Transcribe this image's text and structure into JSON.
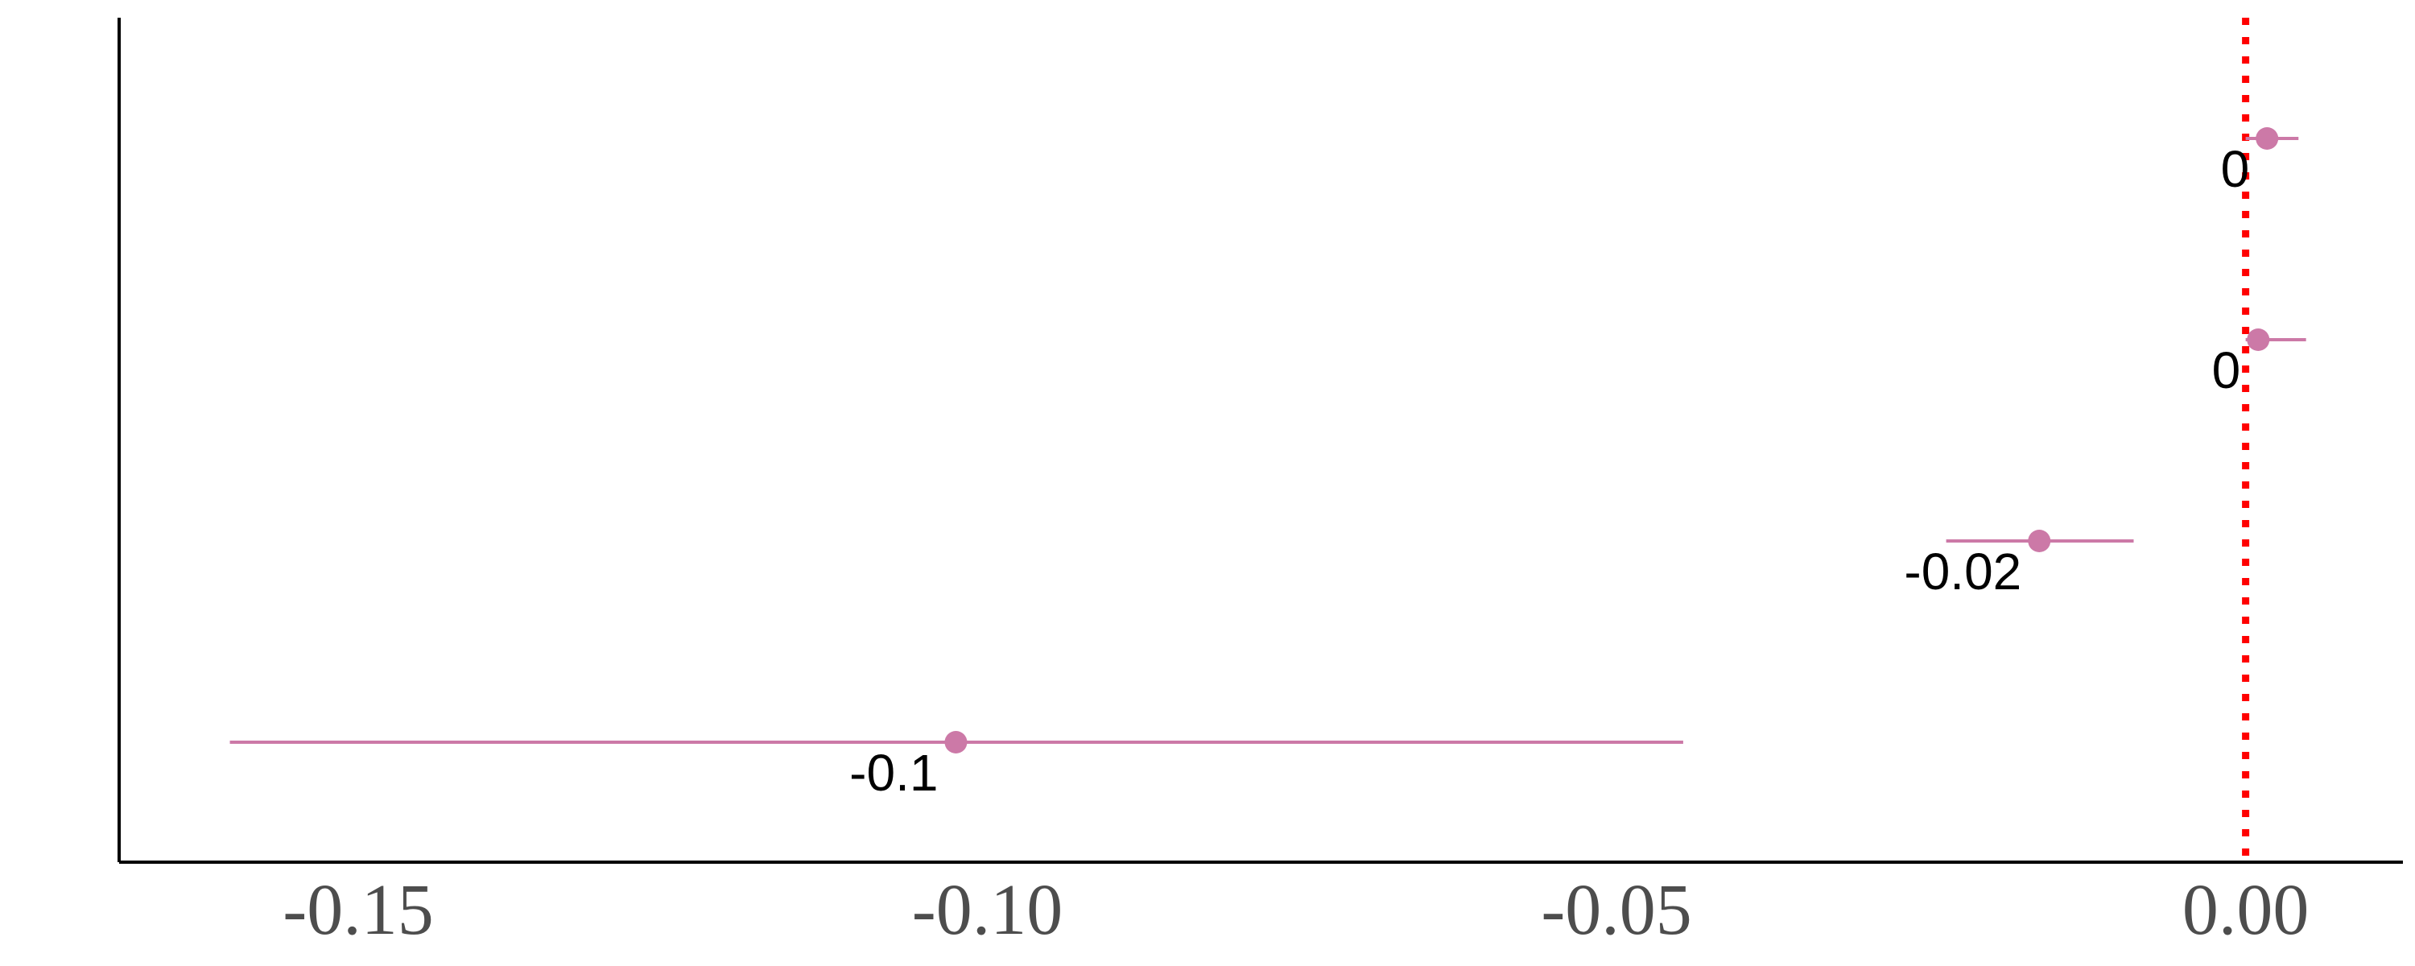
{
  "chart_data": {
    "type": "scatter",
    "subtype": "point-range",
    "xlim": [
      -0.169,
      0.0125
    ],
    "x_ticks": [
      -0.15,
      -0.1,
      -0.05,
      0.0
    ],
    "x_tick_labels": [
      "-0.15",
      "-0.10",
      "-0.05",
      "0.00"
    ],
    "reference_line": {
      "x": 0,
      "style": "dotted",
      "color": "#ff0000"
    },
    "series": [
      {
        "color": "#cc79a7",
        "points": [
          {
            "estimate": 0.0017,
            "lower": 0.0,
            "upper": 0.0042,
            "label": "0"
          },
          {
            "estimate": 0.001,
            "lower": 0.0,
            "upper": 0.0048,
            "label": "0"
          },
          {
            "estimate": -0.0164,
            "lower": -0.0238,
            "upper": -0.0089,
            "label": "-0.02"
          },
          {
            "estimate": -0.1025,
            "lower": -0.1602,
            "upper": -0.0447,
            "label": "-0.1"
          }
        ]
      }
    ],
    "grid": false,
    "legend": "none",
    "axis_color": "#000000",
    "tick_label_color": "#4d4d4d"
  }
}
